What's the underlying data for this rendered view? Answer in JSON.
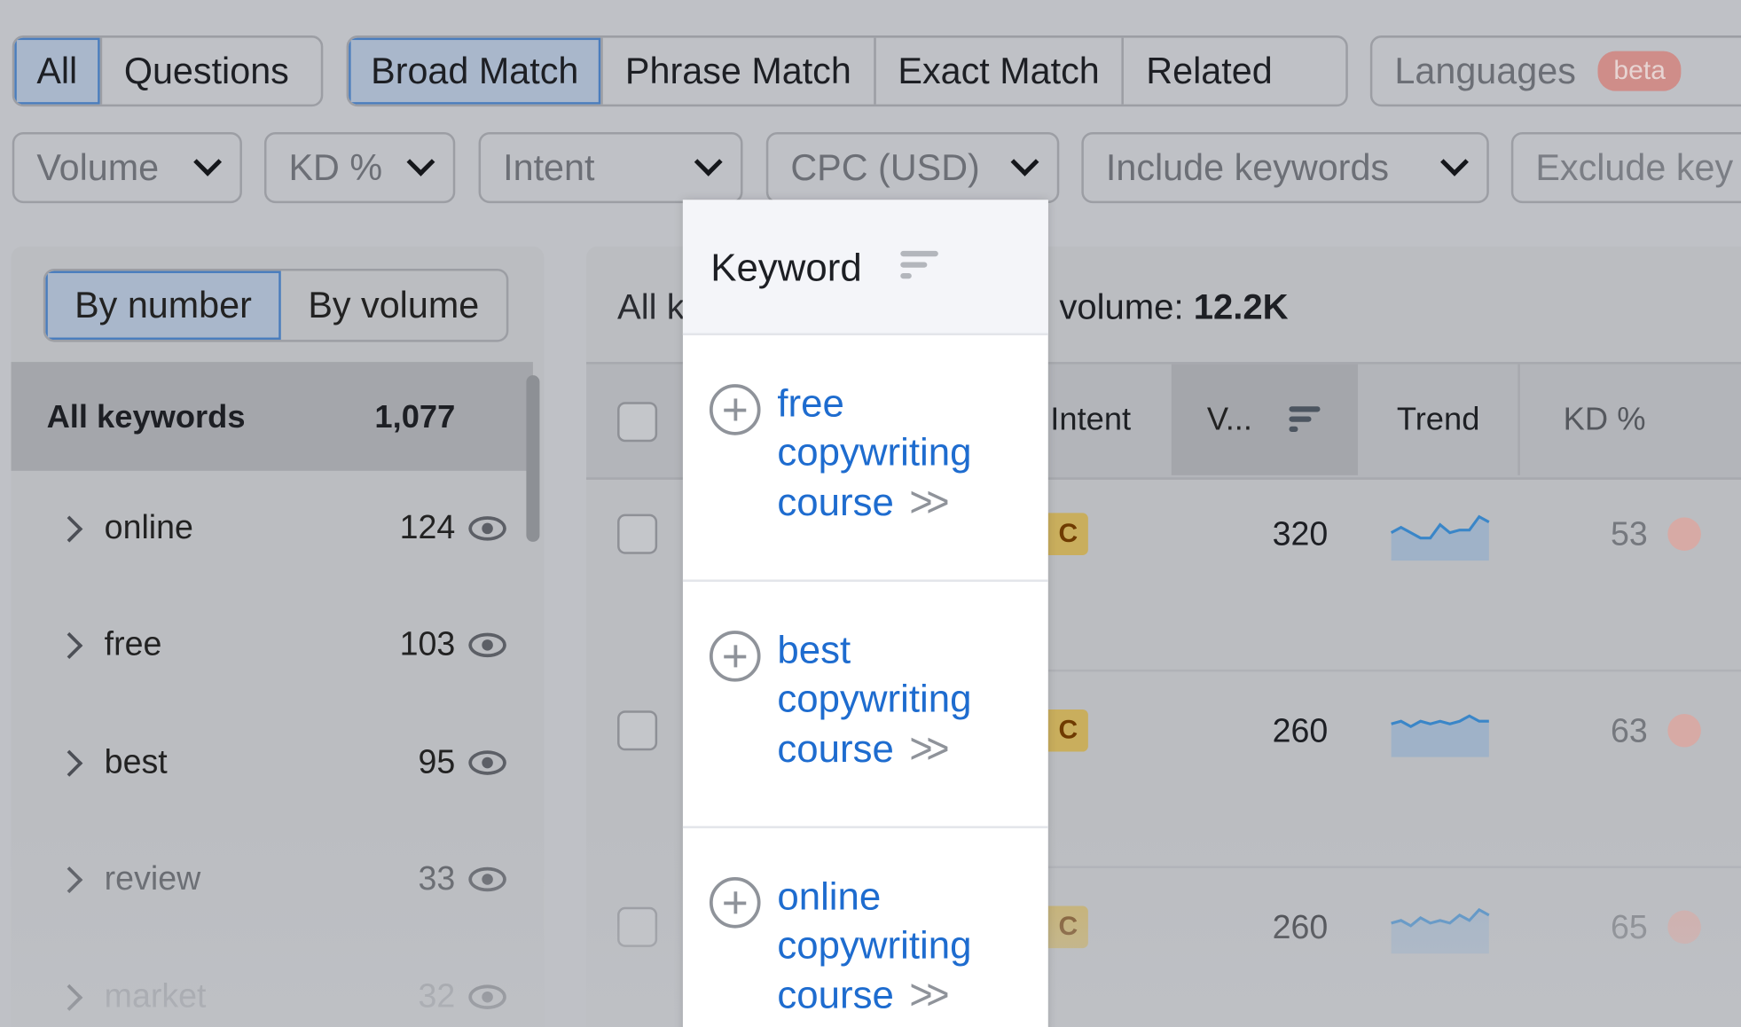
{
  "tabs_type": {
    "items": [
      "All",
      "Questions"
    ],
    "active": 0
  },
  "tabs_match": {
    "items": [
      "Broad Match",
      "Phrase Match",
      "Exact Match",
      "Related"
    ],
    "active": 0
  },
  "languages": {
    "label": "Languages",
    "badge": "beta"
  },
  "filters": [
    "Volume",
    "KD %",
    "Intent",
    "CPC (USD)",
    "Include keywords"
  ],
  "exclude_visible": "Exclude key",
  "sidebar": {
    "toggle": [
      "By number",
      "By volume"
    ],
    "toggle_active": 0,
    "all": {
      "label": "All keywords",
      "count": "1,077"
    },
    "groups": [
      {
        "name": "online",
        "count": "124"
      },
      {
        "name": "free",
        "count": "103"
      },
      {
        "name": "best",
        "count": "95"
      },
      {
        "name": "review",
        "count": "33"
      },
      {
        "name": "market",
        "count": "32"
      }
    ]
  },
  "summary": {
    "prefix": "All k",
    "volume_label": "volume:",
    "volume_value": "12.2K"
  },
  "columns": {
    "keyword": "Keyword",
    "intent": "Intent",
    "volume": "V...",
    "trend": "Trend",
    "kd": "KD %"
  },
  "rows": [
    {
      "keyword": "free copywriting course",
      "intent": "C",
      "volume": "320",
      "kd": "53",
      "trend": [
        3,
        5,
        3,
        1,
        1,
        6,
        3,
        4,
        4,
        9,
        7
      ]
    },
    {
      "keyword": "best copywriting course",
      "intent": "C",
      "volume": "260",
      "kd": "63",
      "trend": [
        5,
        6,
        4,
        6,
        5,
        6,
        5,
        6,
        8,
        6,
        6
      ]
    },
    {
      "keyword": "online copywriting course",
      "intent": "C",
      "volume": "260",
      "kd": "65",
      "trend": [
        4,
        5,
        3,
        6,
        4,
        5,
        4,
        7,
        5,
        9,
        7
      ]
    }
  ],
  "colors": {
    "link": "#1e6ccf",
    "accent": "#4a7dbd",
    "intent_commercial": "#c9ae5d",
    "kd_dot": "#d7aaa5"
  }
}
